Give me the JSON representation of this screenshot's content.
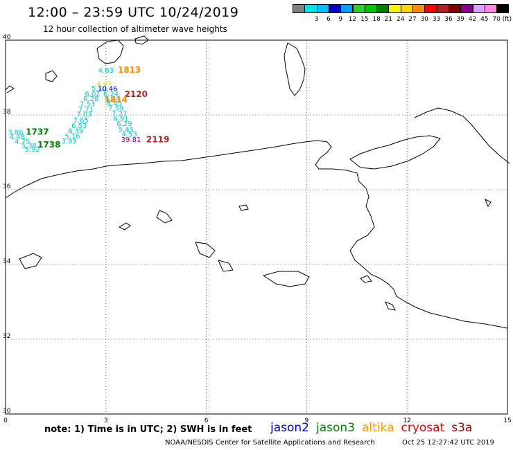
{
  "header": {
    "title": "12:00 – 23:59 UTC 10/24/2019",
    "subtitle": "12 hour collection of altimeter wave heights"
  },
  "legend": {
    "unit": "(ft)",
    "bins": [
      {
        "label": "",
        "color": "#808080"
      },
      {
        "label": "3",
        "color": "#00e5e5"
      },
      {
        "label": "6",
        "color": "#00bfff"
      },
      {
        "label": "9",
        "color": "#0000cd"
      },
      {
        "label": "12",
        "color": "#00a0ff"
      },
      {
        "label": "15",
        "color": "#32cd32"
      },
      {
        "label": "18",
        "color": "#00c800"
      },
      {
        "label": "21",
        "color": "#008000"
      },
      {
        "label": "24",
        "color": "#f5f500"
      },
      {
        "label": "27",
        "color": "#ffd700"
      },
      {
        "label": "30",
        "color": "#ff8c00"
      },
      {
        "label": "33",
        "color": "#ff0000"
      },
      {
        "label": "36",
        "color": "#b22222"
      },
      {
        "label": "39",
        "color": "#800000"
      },
      {
        "label": "42",
        "color": "#8b008b"
      },
      {
        "label": "45",
        "color": "#d8a0ff"
      },
      {
        "label": "70",
        "color": "#ff88e0"
      },
      {
        "label": "",
        "color": "#000000"
      }
    ]
  },
  "map": {
    "lon_range": [
      0,
      15
    ],
    "lat_range": [
      30,
      40
    ],
    "lon_ticks": [
      "0",
      "3",
      "6",
      "9",
      "12",
      "15"
    ],
    "lat_ticks": [
      "40",
      "38",
      "36",
      "34",
      "32",
      "30"
    ],
    "grid": true
  },
  "observations": [
    {
      "text": "4.63",
      "lon": 3.0,
      "lat": 39.13,
      "color": "#00c8c8"
    },
    {
      "text": "4.97",
      "lon": 2.95,
      "lat": 38.77,
      "color": "#ffd000"
    },
    {
      "text": "5.10",
      "lon": 2.8,
      "lat": 38.65,
      "color": "#00c8c8"
    },
    {
      "text": "10.46",
      "lon": 3.05,
      "lat": 38.64,
      "color": "#0000cd"
    },
    {
      "text": "6.02",
      "lon": 2.6,
      "lat": 38.5,
      "color": "#00c8c8"
    },
    {
      "text": "6.24",
      "lon": 3.15,
      "lat": 38.5,
      "color": "#00c8c8"
    },
    {
      "text": "6.28",
      "lon": 2.55,
      "lat": 38.37,
      "color": "#00c8c8"
    },
    {
      "text": "6.34",
      "lon": 3.2,
      "lat": 38.37,
      "color": "#00c8c8"
    },
    {
      "text": "7.53",
      "lon": 2.45,
      "lat": 38.23,
      "color": "#00c8c8"
    },
    {
      "text": "8.45",
      "lon": 3.25,
      "lat": 38.25,
      "color": "#00c8c8"
    },
    {
      "text": "7.71",
      "lon": 2.4,
      "lat": 38.08,
      "color": "#00c8c8"
    },
    {
      "text": "7.59",
      "lon": 3.3,
      "lat": 38.12,
      "color": "#00c8c8"
    },
    {
      "text": "7.03",
      "lon": 2.35,
      "lat": 37.95,
      "color": "#00c8c8"
    },
    {
      "text": "7.27",
      "lon": 3.4,
      "lat": 37.97,
      "color": "#00c8c8"
    },
    {
      "text": "7.65",
      "lon": 2.25,
      "lat": 37.8,
      "color": "#00c8c8"
    },
    {
      "text": "6.91",
      "lon": 3.45,
      "lat": 37.84,
      "color": "#00c8c8"
    },
    {
      "text": "6.53",
      "lon": 2.2,
      "lat": 37.65,
      "color": "#00c8c8"
    },
    {
      "text": "6.29",
      "lon": 3.55,
      "lat": 37.7,
      "color": "#00c8c8"
    },
    {
      "text": "6.39",
      "lon": 2.1,
      "lat": 37.51,
      "color": "#00c8c8"
    },
    {
      "text": "5.45",
      "lon": 3.6,
      "lat": 37.55,
      "color": "#00c8c8"
    },
    {
      "text": "5.16",
      "lon": 2.0,
      "lat": 37.37,
      "color": "#00c8c8"
    },
    {
      "text": "4.53",
      "lon": 3.7,
      "lat": 37.43,
      "color": "#00c8c8"
    },
    {
      "text": "3.99",
      "lon": 1.9,
      "lat": 37.24,
      "color": "#00c8c8"
    },
    {
      "text": "39.81",
      "lon": 3.75,
      "lat": 37.28,
      "color": "#8b008b"
    },
    {
      "text": "3.86",
      "lon": 0.3,
      "lat": 37.47,
      "color": "#00c8c8"
    },
    {
      "text": "4.48",
      "lon": 0.35,
      "lat": 37.35,
      "color": "#00c8c8"
    },
    {
      "text": "4.75",
      "lon": 0.5,
      "lat": 37.23,
      "color": "#00c8c8"
    },
    {
      "text": "5.38",
      "lon": 0.7,
      "lat": 37.12,
      "color": "#00c8c8"
    },
    {
      "text": "5.92",
      "lon": 0.8,
      "lat": 37.02,
      "color": "#00c8c8"
    }
  ],
  "pass_times": [
    {
      "text": "1813",
      "lon": 3.7,
      "lat": 39.13,
      "color": "#ff8c00"
    },
    {
      "text": "2120",
      "lon": 3.9,
      "lat": 38.48,
      "color": "#b22222"
    },
    {
      "text": "1814",
      "lon": 3.3,
      "lat": 38.33,
      "color": "#ff8c00"
    },
    {
      "text": "1737",
      "lon": 0.95,
      "lat": 37.47,
      "color": "#008000"
    },
    {
      "text": "1738",
      "lon": 1.3,
      "lat": 37.13,
      "color": "#008000"
    },
    {
      "text": "2119",
      "lon": 4.55,
      "lat": 37.27,
      "color": "#b22222"
    }
  ],
  "footer": {
    "note": "note: 1) Time is in UTC; 2) SWH is in feet",
    "credit": "NOAA/NESDIS Center for Satellite Applications and Research",
    "stamp": "Oct 25 12:27:42 UTC 2019",
    "satellites": [
      {
        "name": "jason2",
        "color": "#0000cd"
      },
      {
        "name": "jason3",
        "color": "#008000"
      },
      {
        "name": "altika",
        "color": "#ff9900"
      },
      {
        "name": "cryosat",
        "color": "#dd0000"
      },
      {
        "name": "s3a",
        "color": "#8b0000"
      }
    ]
  }
}
